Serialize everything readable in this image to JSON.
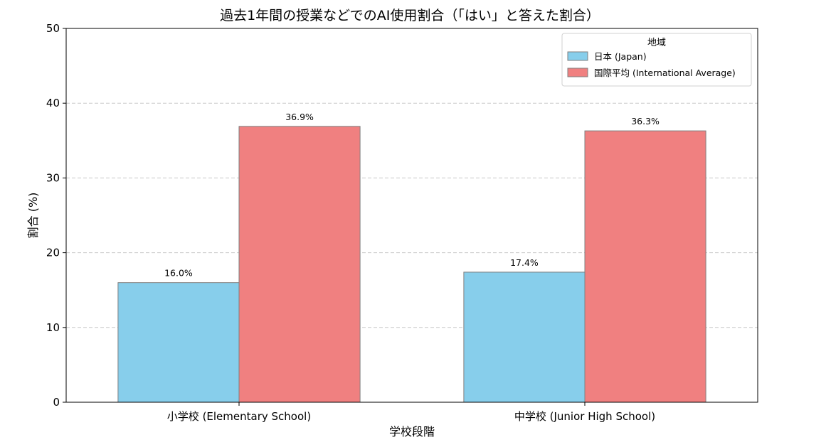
{
  "chart_data": {
    "type": "bar",
    "title": "過去1年間の授業などでのAI使用割合（「はい」と答えた割合）",
    "xlabel": "学校段階",
    "ylabel": "割合 (%)",
    "ylim": [
      0,
      50
    ],
    "yticks": [
      0,
      10,
      20,
      30,
      40,
      50
    ],
    "grid": "y-dashed",
    "categories": [
      "小学校 (Elementary School)",
      "中学校 (Junior High School)"
    ],
    "series": [
      {
        "name": "日本 (Japan)",
        "values": [
          16.0,
          17.4
        ],
        "color": "#87CEEB",
        "labels": [
          "16.0%",
          "17.4%"
        ]
      },
      {
        "name": "国際平均 (International Average)",
        "values": [
          36.9,
          36.3
        ],
        "color": "#F08080",
        "labels": [
          "36.9%",
          "36.3%"
        ]
      }
    ],
    "legend": {
      "title": "地域",
      "placement": "top-right"
    }
  }
}
